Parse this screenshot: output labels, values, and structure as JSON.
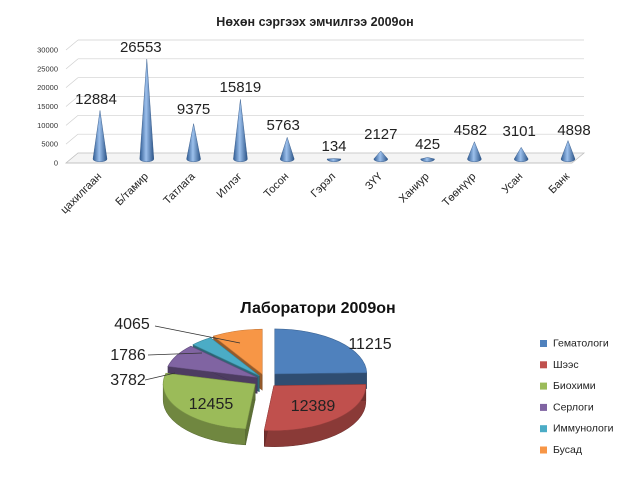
{
  "chart_data": [
    {
      "type": "bar",
      "title": "Нөхөн сэргээх эмчилгээ 2009он",
      "categories": [
        "цахилгаан",
        "Б/тамир",
        "Татлага",
        "Иллэг",
        "Тосон",
        "Гэрэл",
        "ЗҮҮ",
        "Ханиур",
        "Төөнүүр",
        "Усан",
        "Банк"
      ],
      "values": [
        12884,
        26553,
        9375,
        15819,
        5763,
        134,
        2127,
        425,
        4582,
        3101,
        4898
      ],
      "data_labels": [
        "12884",
        "26553",
        "9375",
        "15819",
        "5763",
        "134",
        "2127",
        "425",
        "4582",
        "3101",
        "4898"
      ],
      "ylim": [
        0,
        30000
      ],
      "yticks": [
        0,
        5000,
        10000,
        15000,
        20000,
        25000,
        30000
      ],
      "ytick_labels": [
        "0",
        "5000",
        "10000",
        "15000",
        "20000",
        "25000",
        "30000"
      ],
      "grid": true,
      "bar_color": "#4F81BD"
    },
    {
      "type": "pie",
      "title": "Лаборатори 2009он",
      "labels": [
        "Гематологи",
        "Шээс",
        "Биохими",
        "Серлоги",
        "Иммунологи",
        "Бусад"
      ],
      "values": [
        11215,
        12389,
        12455,
        3782,
        1786,
        4065
      ],
      "data_labels": [
        "11215",
        "12389",
        "12455",
        "3782",
        "1786",
        "4065"
      ],
      "colors": [
        "#4F81BD",
        "#C0504D",
        "#9BBB59",
        "#8064A2",
        "#4BACC6",
        "#F79646"
      ],
      "legend_position": "right",
      "exploded": true
    }
  ]
}
